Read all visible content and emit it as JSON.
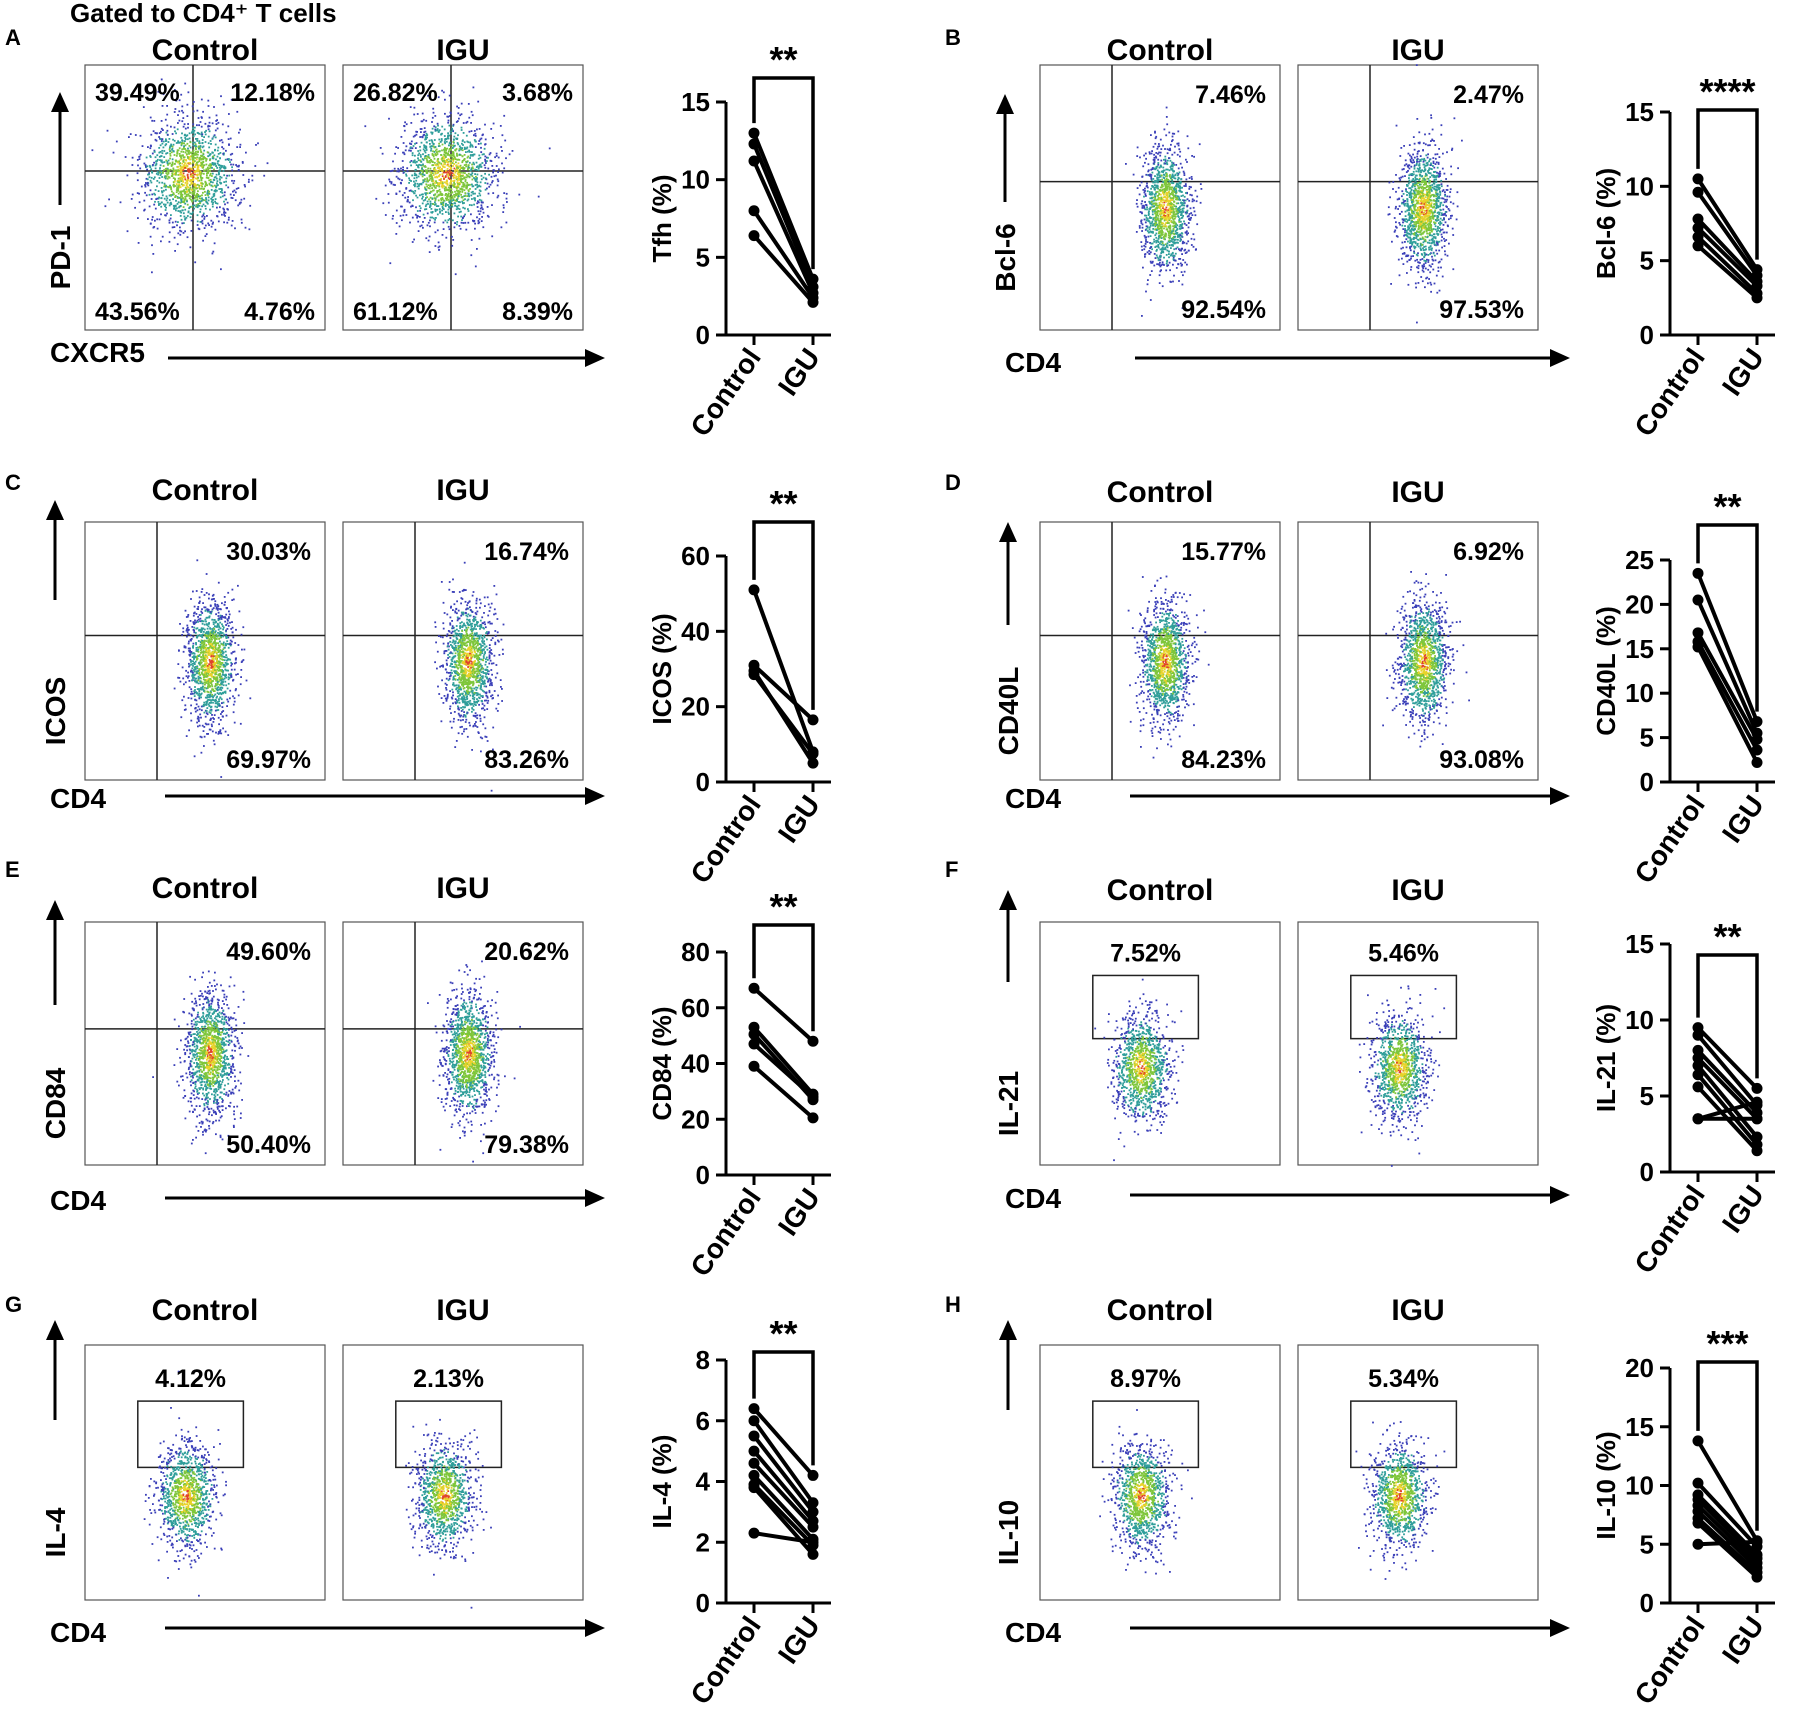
{
  "header": "Gated to CD4⁺ T cells",
  "panels": [
    {
      "letter": "A",
      "marker": "PD-1",
      "xmarker": "CXCR5",
      "gate": "quadrant",
      "groups": [
        {
          "name": "Control",
          "q": [
            "39.49%",
            "12.18%",
            "43.56%",
            "4.76%"
          ]
        },
        {
          "name": "IGU",
          "q": [
            "26.82%",
            "3.68%",
            "61.12%",
            "8.39%"
          ]
        }
      ]
    },
    {
      "letter": "B",
      "marker": "Bcl-6",
      "xmarker": "CD4",
      "gate": "vertical",
      "groups": [
        {
          "name": "Control",
          "top": "7.46%",
          "bottom": "92.54%"
        },
        {
          "name": "IGU",
          "top": "2.47%",
          "bottom": "97.53%"
        }
      ]
    },
    {
      "letter": "C",
      "marker": "ICOS",
      "xmarker": "CD4",
      "gate": "vertical",
      "groups": [
        {
          "name": "Control",
          "top": "30.03%",
          "bottom": "69.97%"
        },
        {
          "name": "IGU",
          "top": "16.74%",
          "bottom": "83.26%"
        }
      ]
    },
    {
      "letter": "D",
      "marker": "CD40L",
      "xmarker": "CD4",
      "gate": "vertical",
      "groups": [
        {
          "name": "Control",
          "top": "15.77%",
          "bottom": "84.23%"
        },
        {
          "name": "IGU",
          "top": "6.92%",
          "bottom": "93.08%"
        }
      ]
    },
    {
      "letter": "E",
      "marker": "CD84",
      "xmarker": "CD4",
      "gate": "vertical",
      "groups": [
        {
          "name": "Control",
          "top": "49.60%",
          "bottom": "50.40%"
        },
        {
          "name": "IGU",
          "top": "20.62%",
          "bottom": "79.38%"
        }
      ]
    },
    {
      "letter": "F",
      "marker": "IL-21",
      "xmarker": "CD4",
      "gate": "box",
      "groups": [
        {
          "name": "Control",
          "top": "7.52%"
        },
        {
          "name": "IGU",
          "top": "5.46%"
        }
      ]
    },
    {
      "letter": "G",
      "marker": "IL-4",
      "xmarker": "CD4",
      "gate": "box",
      "groups": [
        {
          "name": "Control",
          "top": "4.12%"
        },
        {
          "name": "IGU",
          "top": "2.13%"
        }
      ]
    },
    {
      "letter": "H",
      "marker": "IL-10",
      "xmarker": "CD4",
      "gate": "box",
      "groups": [
        {
          "name": "Control",
          "top": "8.97%"
        },
        {
          "name": "IGU",
          "top": "5.34%"
        }
      ]
    }
  ],
  "chart_data": [
    {
      "panel": "A",
      "type": "scatter",
      "subtype": "paired-dot",
      "ylabel": "Tfh (%)",
      "categories": [
        "Control",
        "IGU"
      ],
      "ylim": [
        0,
        15
      ],
      "yticks": [
        0,
        5,
        10,
        15
      ],
      "significance": "**",
      "pairs": [
        [
          13.0,
          3.6
        ],
        [
          12.3,
          3.1
        ],
        [
          11.2,
          2.7
        ],
        [
          8.0,
          2.4
        ],
        [
          6.4,
          2.1
        ]
      ]
    },
    {
      "panel": "B",
      "type": "scatter",
      "subtype": "paired-dot",
      "ylabel": "Bcl-6 (%)",
      "categories": [
        "Control",
        "IGU"
      ],
      "ylim": [
        0,
        15
      ],
      "yticks": [
        0,
        5,
        10,
        15
      ],
      "significance": "****",
      "pairs": [
        [
          10.5,
          4.4
        ],
        [
          9.6,
          4.0
        ],
        [
          7.8,
          3.6
        ],
        [
          7.2,
          3.3
        ],
        [
          6.6,
          2.8
        ],
        [
          6.0,
          2.5
        ]
      ]
    },
    {
      "panel": "C",
      "type": "scatter",
      "subtype": "paired-dot",
      "ylabel": "ICOS (%)",
      "categories": [
        "Control",
        "IGU"
      ],
      "ylim": [
        0,
        60
      ],
      "yticks": [
        0,
        20,
        40,
        60
      ],
      "significance": "**",
      "pairs": [
        [
          51.0,
          8.0
        ],
        [
          31.0,
          16.5
        ],
        [
          29.5,
          5.0
        ],
        [
          28.5,
          7.5
        ]
      ]
    },
    {
      "panel": "D",
      "type": "scatter",
      "subtype": "paired-dot",
      "ylabel": "CD40L (%)",
      "categories": [
        "Control",
        "IGU"
      ],
      "ylim": [
        0,
        25
      ],
      "yticks": [
        0,
        5,
        10,
        15,
        20,
        25
      ],
      "significance": "**",
      "pairs": [
        [
          23.5,
          6.8
        ],
        [
          20.5,
          5.5
        ],
        [
          16.8,
          4.8
        ],
        [
          15.8,
          3.6
        ],
        [
          15.2,
          2.2
        ]
      ]
    },
    {
      "panel": "E",
      "type": "scatter",
      "subtype": "paired-dot",
      "ylabel": "CD84 (%)",
      "categories": [
        "Control",
        "IGU"
      ],
      "ylim": [
        0,
        80
      ],
      "yticks": [
        0,
        20,
        40,
        60,
        80
      ],
      "significance": "**",
      "pairs": [
        [
          67.0,
          48.0
        ],
        [
          53.0,
          29.0
        ],
        [
          50.5,
          27.0
        ],
        [
          47.0,
          28.0
        ],
        [
          39.0,
          20.5
        ]
      ]
    },
    {
      "panel": "F",
      "type": "scatter",
      "subtype": "paired-dot",
      "ylabel": "IL-21 (%)",
      "categories": [
        "Control",
        "IGU"
      ],
      "ylim": [
        0,
        15
      ],
      "yticks": [
        0,
        5,
        10,
        15
      ],
      "significance": "**",
      "pairs": [
        [
          9.5,
          5.5
        ],
        [
          9.0,
          4.4
        ],
        [
          8.0,
          3.9
        ],
        [
          7.5,
          3.5
        ],
        [
          7.0,
          2.3
        ],
        [
          6.4,
          1.8
        ],
        [
          5.6,
          1.4
        ],
        [
          3.5,
          3.5
        ],
        [
          3.5,
          4.6
        ]
      ]
    },
    {
      "panel": "G",
      "type": "scatter",
      "subtype": "paired-dot",
      "ylabel": "IL-4 (%)",
      "categories": [
        "Control",
        "IGU"
      ],
      "ylim": [
        0,
        8
      ],
      "yticks": [
        0,
        2,
        4,
        6,
        8
      ],
      "significance": "**",
      "pairs": [
        [
          6.4,
          4.2
        ],
        [
          6.0,
          3.3
        ],
        [
          5.5,
          3.0
        ],
        [
          5.0,
          2.7
        ],
        [
          4.6,
          2.5
        ],
        [
          4.2,
          2.1
        ],
        [
          3.9,
          1.9
        ],
        [
          3.8,
          1.6
        ],
        [
          2.3,
          2.0
        ]
      ]
    },
    {
      "panel": "H",
      "type": "scatter",
      "subtype": "paired-dot",
      "ylabel": "IL-10 (%)",
      "categories": [
        "Control",
        "IGU"
      ],
      "ylim": [
        0,
        20
      ],
      "yticks": [
        0,
        5,
        10,
        15,
        20
      ],
      "significance": "***",
      "pairs": [
        [
          13.8,
          5.3
        ],
        [
          10.2,
          4.8
        ],
        [
          9.2,
          4.1
        ],
        [
          8.8,
          3.8
        ],
        [
          8.3,
          3.4
        ],
        [
          7.8,
          3.0
        ],
        [
          7.2,
          2.6
        ],
        [
          6.8,
          2.2
        ],
        [
          5.0,
          5.2
        ]
      ]
    }
  ]
}
